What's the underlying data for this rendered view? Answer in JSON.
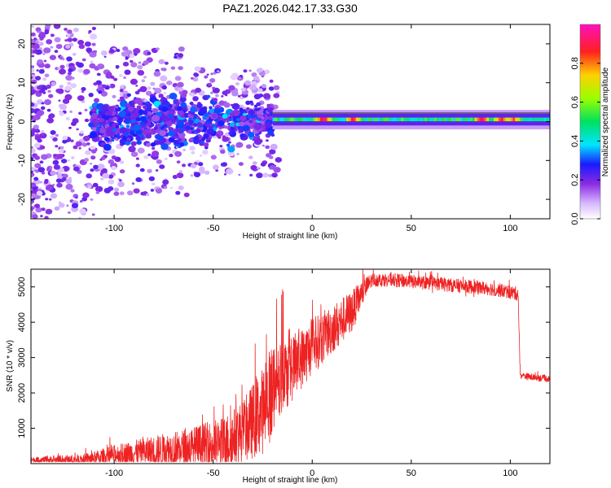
{
  "title": "PAZ1.2026.042.17.33.G30",
  "colors": {
    "snr_line": "#ee2222",
    "spectrum_base": "#7a1fe0",
    "frame": "#000000"
  },
  "chart_data": [
    {
      "type": "heatmap",
      "title": "PAZ1.2026.042.17.33.G30",
      "xlabel": "Height of straight line (km)",
      "ylabel": "Frequency (Hz)",
      "xlim": [
        -142,
        120
      ],
      "ylim": [
        -25,
        25
      ],
      "xticks": [
        -100,
        -50,
        0,
        50,
        100
      ],
      "yticks": [
        20,
        10,
        0,
        -10,
        -20
      ],
      "ytick_labels": [
        "20",
        "10",
        "0",
        "-10",
        "-20"
      ],
      "colorbar": {
        "label": "Normalized spectral amplitude",
        "range": [
          0,
          1
        ],
        "ticks": [
          0.0,
          0.2,
          0.4,
          0.6,
          0.8
        ],
        "tick_labels": [
          "0.0",
          "0.2",
          "0.4",
          "0.6",
          "0.8"
        ],
        "colormap": "white-purple-blue-cyan-green-yellow-red-magenta"
      },
      "main_band": {
        "x_start": -20,
        "x_end": 120,
        "freq_center": 0.5,
        "freq_width": 2.5
      },
      "hot_spots": [
        {
          "x": 5,
          "amp": 0.95
        },
        {
          "x": 20,
          "amp": 0.9
        },
        {
          "x": 85,
          "amp": 0.95
        },
        {
          "x": 95,
          "amp": 0.9
        },
        {
          "x": 101,
          "amp": 0.85
        }
      ]
    },
    {
      "type": "line",
      "xlabel": "Height of straight line (km)",
      "ylabel": "SNR (10 * v/v)",
      "xlim": [
        -142,
        120
      ],
      "ylim": [
        0,
        5500
      ],
      "xticks": [
        -100,
        -50,
        0,
        50,
        100
      ],
      "yticks": [
        1000,
        2000,
        3000,
        4000,
        5000
      ],
      "series": [
        {
          "name": "SNR",
          "trend_x": [
            -142,
            -115,
            -110,
            -100,
            -80,
            -60,
            -45,
            -35,
            -25,
            -20,
            -15,
            -10,
            -5,
            0,
            10,
            20,
            25,
            30,
            40,
            50,
            60,
            70,
            80,
            90,
            100,
            104,
            105,
            110,
            120
          ],
          "trend_y": [
            100,
            100,
            150,
            250,
            350,
            450,
            550,
            900,
            1500,
            2100,
            2400,
            2700,
            3000,
            3300,
            3800,
            4300,
            4800,
            5200,
            5200,
            5150,
            5100,
            5050,
            5000,
            4950,
            4850,
            4800,
            2500,
            2450,
            2400
          ],
          "noise_amp_x": [
            -142,
            -110,
            -60,
            -35,
            -20,
            -15,
            0,
            20,
            30,
            104,
            105,
            120
          ],
          "noise_amp_y": [
            80,
            200,
            600,
            900,
            1400,
            1000,
            800,
            600,
            200,
            200,
            100,
            100
          ]
        }
      ]
    }
  ]
}
